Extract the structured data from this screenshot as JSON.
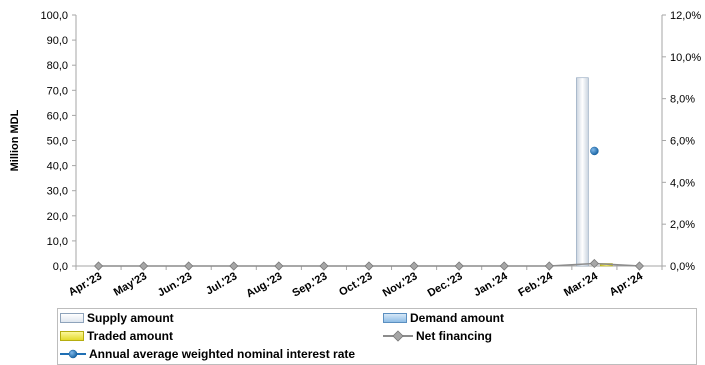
{
  "chart_data": {
    "type": "bar",
    "categories": [
      "Apr.'23",
      "May'23",
      "Jun.'23",
      "Jul.'23",
      "Aug.'23",
      "Sep.'23",
      "Oct.'23",
      "Nov.'23",
      "Dec.'23",
      "Jan.'24",
      "Feb.'24",
      "Mar.'24",
      "Apr.'24"
    ],
    "ylabel": "Million MDL",
    "ylim": [
      0,
      100
    ],
    "y_ticks": [
      "0,0",
      "10,0",
      "20,0",
      "30,0",
      "40,0",
      "50,0",
      "60,0",
      "70,0",
      "80,0",
      "90,0",
      "100,0"
    ],
    "y2lim": [
      0,
      12
    ],
    "y2_ticks": [
      "0,0%",
      "2,0%",
      "4,0%",
      "6,0%",
      "8,0%",
      "10,0%",
      "12,0%"
    ],
    "grid": false,
    "legend_position": "bottom",
    "series": [
      {
        "name": "Supply amount",
        "type": "bar",
        "axis": "left",
        "color": "#e8eef6",
        "values": [
          0,
          0,
          0,
          0,
          0,
          0,
          0,
          0,
          0,
          0,
          0,
          75,
          0
        ]
      },
      {
        "name": "Demand amount",
        "type": "bar",
        "axis": "left",
        "color": "#9dc3e6",
        "values": [
          0,
          0,
          0,
          0,
          0,
          0,
          0,
          0,
          0,
          0,
          0,
          0,
          0
        ]
      },
      {
        "name": "Traded amount",
        "type": "bar",
        "axis": "left",
        "color": "#e8e040",
        "values": [
          0,
          0,
          0,
          0,
          0,
          0,
          0,
          0,
          0,
          0,
          0,
          1,
          0
        ]
      },
      {
        "name": "Net financing",
        "type": "line",
        "axis": "left",
        "color": "#8c8c8c",
        "values": [
          0,
          0,
          0,
          0,
          0,
          0,
          0,
          0,
          0,
          0,
          0,
          1,
          0
        ]
      },
      {
        "name": "Annual average weighted nominal interest rate",
        "type": "scatter",
        "axis": "right",
        "color": "#1f6fb4",
        "values": [
          null,
          null,
          null,
          null,
          null,
          null,
          null,
          null,
          null,
          null,
          null,
          5.5,
          null
        ]
      }
    ]
  },
  "legend": {
    "supply": "Supply amount",
    "demand": "Demand amount",
    "traded": "Traded amount",
    "net": "Net financing",
    "rate": "Annual average weighted nominal interest rate"
  }
}
